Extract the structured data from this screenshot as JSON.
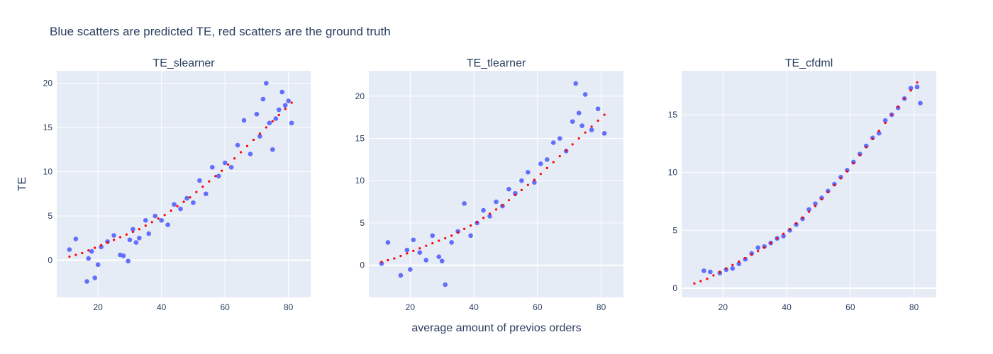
{
  "title": "Blue scatters are predicted TE, red scatters are the ground truth",
  "xlabel": "average amount of previos orders",
  "ylabel": "TE",
  "colors": {
    "predicted": "#636efa",
    "ground_truth": "#ff0000",
    "plot_bg": "#e5ecf6",
    "grid": "#ffffff",
    "text": "#2a3f5f"
  },
  "chart_data": [
    {
      "type": "scatter",
      "title": "TE_slearner",
      "xlim": [
        7,
        87
      ],
      "ylim": [
        -4.2,
        21.4
      ],
      "x_ticks": [
        20,
        40,
        60,
        80
      ],
      "y_ticks": [
        0,
        5,
        10,
        15,
        20
      ],
      "series": [
        {
          "role": "predicted",
          "x": [
            11,
            13,
            16.5,
            17,
            18,
            19,
            20,
            21,
            23,
            25,
            27,
            28,
            29.5,
            30,
            31,
            32,
            33,
            35,
            36,
            38,
            40,
            42,
            44,
            46,
            48,
            50,
            52,
            54,
            56,
            58,
            60,
            62,
            64,
            66,
            68,
            70,
            71,
            72,
            73,
            74,
            75,
            76,
            77,
            78,
            79,
            80,
            81
          ],
          "y": [
            1.2,
            2.4,
            -2.4,
            0.2,
            1.0,
            -2.0,
            -0.5,
            1.5,
            2.1,
            2.8,
            0.6,
            0.5,
            -0.1,
            2.3,
            3.5,
            2.0,
            2.5,
            4.5,
            3.0,
            5.0,
            4.5,
            4.0,
            6.3,
            5.8,
            7.0,
            6.5,
            9.0,
            7.5,
            10.5,
            9.5,
            11.0,
            10.5,
            13.0,
            15.8,
            12.0,
            16.5,
            14.0,
            18.2,
            20.0,
            15.5,
            12.5,
            16.0,
            17.0,
            19.0,
            17.5,
            18.0,
            15.5
          ]
        },
        {
          "role": "ground_truth",
          "x": [
            11,
            13,
            15,
            17,
            19,
            21,
            23,
            25,
            27,
            29,
            31,
            33,
            35,
            37,
            39,
            41,
            43,
            45,
            47,
            49,
            51,
            53,
            55,
            57,
            59,
            61,
            63,
            65,
            67,
            69,
            71,
            73,
            75,
            77,
            79,
            81
          ],
          "y": [
            0.4,
            0.6,
            0.8,
            1.1,
            1.4,
            1.7,
            2.0,
            2.3,
            2.6,
            2.9,
            3.2,
            3.5,
            3.9,
            4.3,
            4.7,
            5.1,
            5.6,
            6.1,
            6.6,
            7.1,
            7.7,
            8.3,
            8.9,
            9.5,
            10.1,
            10.8,
            11.5,
            12.2,
            12.9,
            13.6,
            14.3,
            15.0,
            15.7,
            16.4,
            17.1,
            17.8
          ]
        }
      ]
    },
    {
      "type": "scatter",
      "title": "TE_tlearner",
      "xlim": [
        7,
        87
      ],
      "ylim": [
        -3.8,
        23.0
      ],
      "x_ticks": [
        20,
        40,
        60,
        80
      ],
      "y_ticks": [
        0,
        5,
        10,
        15,
        20
      ],
      "series": [
        {
          "role": "predicted",
          "x": [
            11,
            13,
            17,
            19,
            20,
            21,
            23,
            25,
            27,
            29,
            30,
            31,
            33,
            35,
            37,
            39,
            41,
            43,
            45,
            47,
            49,
            51,
            53,
            55,
            57,
            59,
            61,
            63,
            65,
            67,
            69,
            71,
            72,
            73,
            74,
            75,
            77,
            79,
            81
          ],
          "y": [
            0.2,
            2.7,
            -1.2,
            1.8,
            -0.5,
            3.0,
            1.5,
            0.6,
            3.5,
            1.0,
            0.5,
            -2.3,
            2.7,
            4.0,
            7.3,
            3.5,
            5.0,
            6.5,
            5.8,
            7.5,
            7.0,
            9.0,
            8.5,
            10.0,
            11.0,
            9.8,
            12.0,
            12.5,
            14.5,
            15.0,
            13.5,
            17.0,
            21.5,
            18.0,
            16.5,
            20.2,
            16.0,
            18.5,
            15.6
          ]
        },
        {
          "role": "ground_truth",
          "x": [
            11,
            13,
            15,
            17,
            19,
            21,
            23,
            25,
            27,
            29,
            31,
            33,
            35,
            37,
            39,
            41,
            43,
            45,
            47,
            49,
            51,
            53,
            55,
            57,
            59,
            61,
            63,
            65,
            67,
            69,
            71,
            73,
            75,
            77,
            79,
            81
          ],
          "y": [
            0.4,
            0.6,
            0.8,
            1.1,
            1.4,
            1.7,
            2.0,
            2.3,
            2.6,
            2.9,
            3.2,
            3.5,
            3.9,
            4.3,
            4.7,
            5.1,
            5.6,
            6.1,
            6.6,
            7.1,
            7.7,
            8.3,
            8.9,
            9.5,
            10.1,
            10.8,
            11.5,
            12.2,
            12.9,
            13.6,
            14.3,
            15.0,
            15.7,
            16.4,
            17.1,
            17.8
          ]
        }
      ]
    },
    {
      "type": "scatter",
      "title": "TE_cfdml",
      "xlim": [
        7,
        87
      ],
      "ylim": [
        -0.8,
        18.8
      ],
      "x_ticks": [
        20,
        40,
        60,
        80
      ],
      "y_ticks": [
        0,
        5,
        10,
        15
      ],
      "series": [
        {
          "role": "predicted",
          "x": [
            14,
            16,
            19,
            21,
            23,
            25,
            27,
            29,
            31,
            33,
            35,
            37,
            39,
            41,
            43,
            45,
            47,
            49,
            51,
            53,
            55,
            57,
            59,
            61,
            63,
            65,
            67,
            69,
            71,
            73,
            75,
            77,
            79,
            81,
            82
          ],
          "y": [
            1.5,
            1.4,
            1.3,
            1.6,
            1.7,
            2.1,
            2.5,
            3.0,
            3.5,
            3.6,
            3.9,
            4.3,
            4.5,
            5.0,
            5.5,
            6.0,
            6.8,
            7.3,
            7.8,
            8.4,
            9.0,
            9.6,
            10.2,
            10.9,
            11.6,
            12.3,
            13.0,
            13.4,
            14.5,
            15.0,
            15.6,
            16.4,
            17.3,
            17.4,
            16.0
          ]
        },
        {
          "role": "ground_truth",
          "x": [
            11,
            13,
            15,
            17,
            19,
            21,
            23,
            25,
            27,
            29,
            31,
            33,
            35,
            37,
            39,
            41,
            43,
            45,
            47,
            49,
            51,
            53,
            55,
            57,
            59,
            61,
            63,
            65,
            67,
            69,
            71,
            73,
            75,
            77,
            79,
            81
          ],
          "y": [
            0.4,
            0.6,
            0.8,
            1.1,
            1.4,
            1.7,
            2.0,
            2.3,
            2.6,
            2.9,
            3.2,
            3.5,
            3.9,
            4.3,
            4.7,
            5.1,
            5.6,
            6.1,
            6.6,
            7.1,
            7.7,
            8.3,
            8.9,
            9.5,
            10.1,
            10.8,
            11.5,
            12.2,
            12.9,
            13.6,
            14.3,
            15.0,
            15.7,
            16.4,
            17.1,
            17.8
          ]
        }
      ]
    }
  ]
}
